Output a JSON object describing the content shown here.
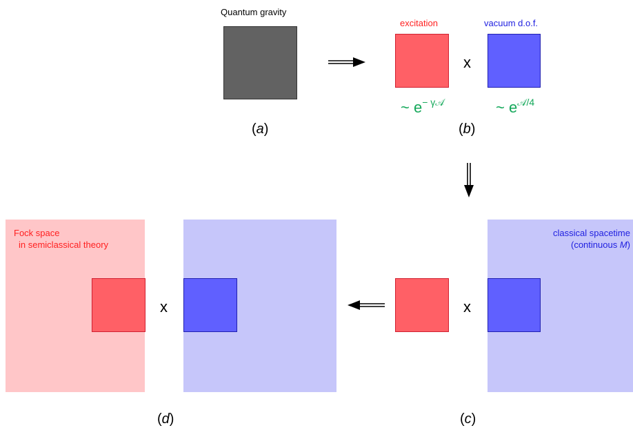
{
  "panel_a": {
    "title": "Quantum gravity",
    "label_open": "(",
    "label_letter": "a",
    "label_close": ")"
  },
  "panel_b": {
    "excitation_label": "excitation",
    "vacuum_label": "vacuum d.o.f.",
    "times": "x",
    "excitation_formula_prefix": "~ e",
    "excitation_formula_exp": "− γ𝒜",
    "vacuum_formula_prefix": "~ e",
    "vacuum_formula_exp": "𝒜/4",
    "label_open": "(",
    "label_letter": "b",
    "label_close": ")"
  },
  "panel_c": {
    "background_label_line1": "classical spacetime",
    "background_label_line2_prefix": "(continuous ",
    "background_label_line2_var": "M",
    "background_label_line2_suffix": ")",
    "times": "x",
    "label_open": "(",
    "label_letter": "c",
    "label_close": ")"
  },
  "panel_d": {
    "fock_label_line1": "Fock space",
    "fock_label_line2": "in semiclassical theory",
    "times": "x",
    "label_open": "(",
    "label_letter": "d",
    "label_close": ")"
  },
  "colors": {
    "grey_square": "#626262",
    "excitation": "#ff6066",
    "vacuum": "#6060ff",
    "fock_background": "#ffc6c8",
    "spacetime_background": "#c6c6fa",
    "formula_green": "#14a85a"
  }
}
